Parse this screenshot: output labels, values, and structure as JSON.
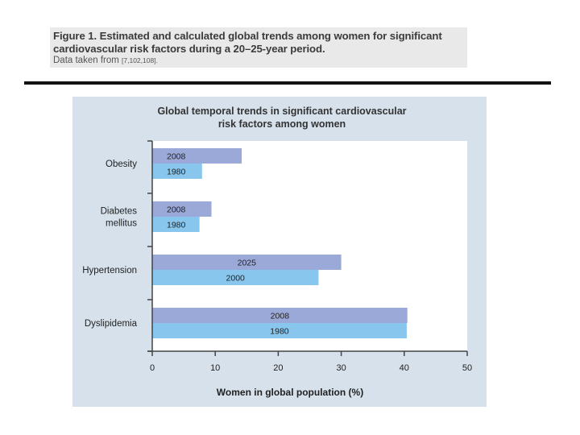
{
  "caption": {
    "title": "Figure 1. Estimated and calculated global trends among women for significant cardiovascular risk factors during a 20–25-year period.",
    "source_prefix": "Data taken from",
    "source_refs": "[7,102,108]."
  },
  "colors": {
    "panel_bg": "#d6e1ec",
    "plot_bg": "#ffffff",
    "recent_bar": "#9ba9d8",
    "earlier_bar": "#88c6ee",
    "axis": "#444444"
  },
  "chart_data": {
    "type": "bar",
    "orientation": "horizontal",
    "title_lines": [
      "Global temporal trends in significant cardiovascular",
      "risk factors among women"
    ],
    "xlabel": "Women in global population (%)",
    "ylabel": "",
    "xlim": [
      0,
      50
    ],
    "xticks": [
      0,
      10,
      20,
      30,
      40,
      50
    ],
    "grid": false,
    "legend": "none",
    "categories": [
      {
        "label_lines": [
          "Obesity"
        ],
        "bars": [
          {
            "year": "2008",
            "value": 14.2,
            "series": "recent"
          },
          {
            "year": "1980",
            "value": 7.9,
            "series": "earlier"
          }
        ]
      },
      {
        "label_lines": [
          "Diabetes",
          "mellitus"
        ],
        "bars": [
          {
            "year": "2008",
            "value": 9.4,
            "series": "recent"
          },
          {
            "year": "1980",
            "value": 7.5,
            "series": "earlier"
          }
        ]
      },
      {
        "label_lines": [
          "Hypertension"
        ],
        "bars": [
          {
            "year": "2025",
            "value": 30.0,
            "series": "recent"
          },
          {
            "year": "2000",
            "value": 26.4,
            "series": "earlier"
          }
        ]
      },
      {
        "label_lines": [
          "Dyslipidemia"
        ],
        "bars": [
          {
            "year": "2008",
            "value": 40.5,
            "series": "recent"
          },
          {
            "year": "1980",
            "value": 40.4,
            "series": "earlier"
          }
        ]
      }
    ]
  }
}
